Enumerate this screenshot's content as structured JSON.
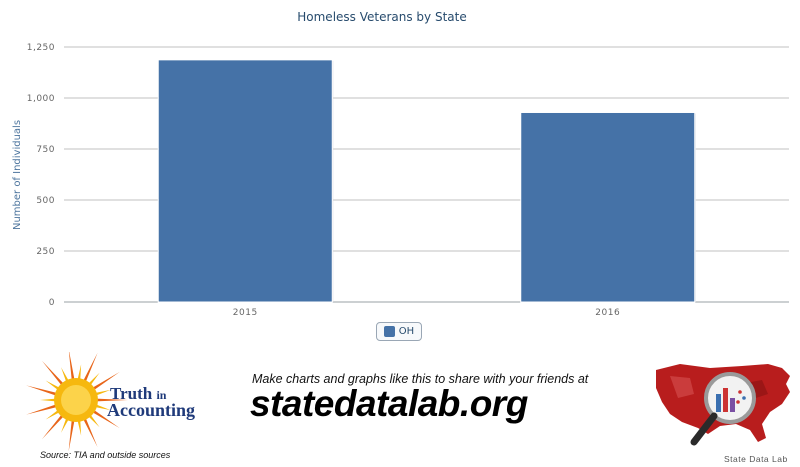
{
  "chart_data": {
    "type": "bar",
    "title": "Homeless Veterans by State",
    "ylabel": "Number of Individuals",
    "xlabel": "",
    "categories": [
      "2015",
      "2016"
    ],
    "series": [
      {
        "name": "OH",
        "values": [
          1187,
          929
        ],
        "color": "#4572a7"
      }
    ],
    "ylim": [
      0,
      1250
    ],
    "yticks": [
      0,
      250,
      500,
      750,
      1000,
      1250
    ],
    "ytick_labels": [
      "0",
      "250",
      "500",
      "750",
      "1,000",
      "1,250"
    ],
    "grid": true,
    "legend_position": "bottom-center"
  },
  "footer": {
    "tia_name_line1": "Truth",
    "tia_name_small": "in",
    "tia_name_line2": "Accounting",
    "source": "Source: TIA and outside sources",
    "promo_text": "Make charts and graphs like this to share with your friends at",
    "promo_url": "statedatalab.org",
    "sdl_label": "State Data Lab"
  },
  "colors": {
    "bar": "#4572a7",
    "grid": "#c0c0c0",
    "title": "#274b6d",
    "sun": "#f6b80f",
    "sun_rays": "#e8651a",
    "map": "#b81d1d"
  }
}
